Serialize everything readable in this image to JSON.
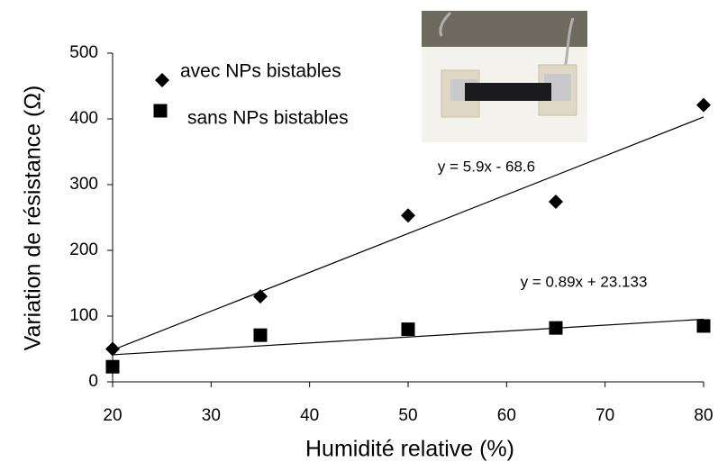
{
  "chart_data": {
    "type": "scatter",
    "x_label": "Humidité relative (%)",
    "y_label": "Variation de résistance (Ω)",
    "series": [
      {
        "name": "avec NPs bistables",
        "color": "#000000",
        "marker": "diamond",
        "x": [
          20,
          35,
          50,
          65,
          80
        ],
        "values": [
          50,
          130,
          253,
          274,
          421
        ]
      },
      {
        "name": "sans NPs bistables",
        "color": "#000000",
        "marker": "square",
        "x": [
          20,
          35,
          50,
          65,
          80
        ],
        "values": [
          23,
          71,
          80,
          82,
          85
        ]
      }
    ],
    "trendline": "linear",
    "annotations": [
      "y = 5.9x - 68.6",
      "y = 0.89x + 23.133"
    ],
    "xlim": [
      20,
      80
    ],
    "xticks": [
      20,
      30,
      40,
      50,
      60,
      70,
      80
    ],
    "ylim": [
      0,
      500
    ],
    "yticks": [
      0,
      100,
      200,
      300,
      400,
      500
    ],
    "grid": false
  }
}
